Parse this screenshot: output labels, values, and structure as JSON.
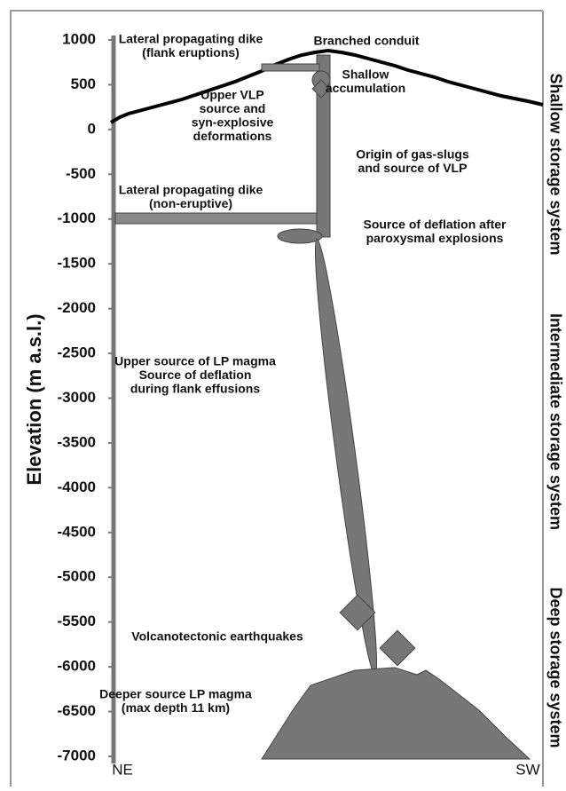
{
  "axis": {
    "title": "Elevation (m a.s.l.)",
    "ylim": [
      1000,
      -7000
    ],
    "yticks": [
      1000,
      500,
      0,
      -500,
      -1000,
      -1500,
      -2000,
      -2500,
      -3000,
      -3500,
      -4000,
      -4500,
      -5000,
      -5500,
      -6000,
      -6500,
      -7000
    ]
  },
  "x_labels": [
    "NE",
    "SW"
  ],
  "side_labels": [
    "Shallow storage system",
    "Intermediate storage system",
    "Deep storage system"
  ],
  "labels": [
    {
      "lines": [
        "Lateral propagating dike",
        "(flank eruptions)"
      ]
    },
    {
      "lines": [
        "Branched conduit"
      ]
    },
    {
      "lines": [
        "Shallow",
        "accumulation"
      ]
    },
    {
      "lines": [
        "Upper VLP",
        "source and",
        "syn-explosive",
        "deformations"
      ]
    },
    {
      "lines": [
        "Origin of gas-slugs",
        "and source of VLP"
      ]
    },
    {
      "lines": [
        "Lateral propagating dike",
        "(non-eruptive)"
      ]
    },
    {
      "lines": [
        "Source of deflation after",
        "paroxysmal explosions"
      ]
    },
    {
      "lines": [
        "Upper source of LP magma",
        "Source of deflation",
        "during flank effusions"
      ]
    },
    {
      "lines": [
        "Volcanotectonic earthquakes"
      ]
    },
    {
      "lines": [
        "Deeper source LP magma",
        "(max depth 11 km)"
      ]
    }
  ]
}
